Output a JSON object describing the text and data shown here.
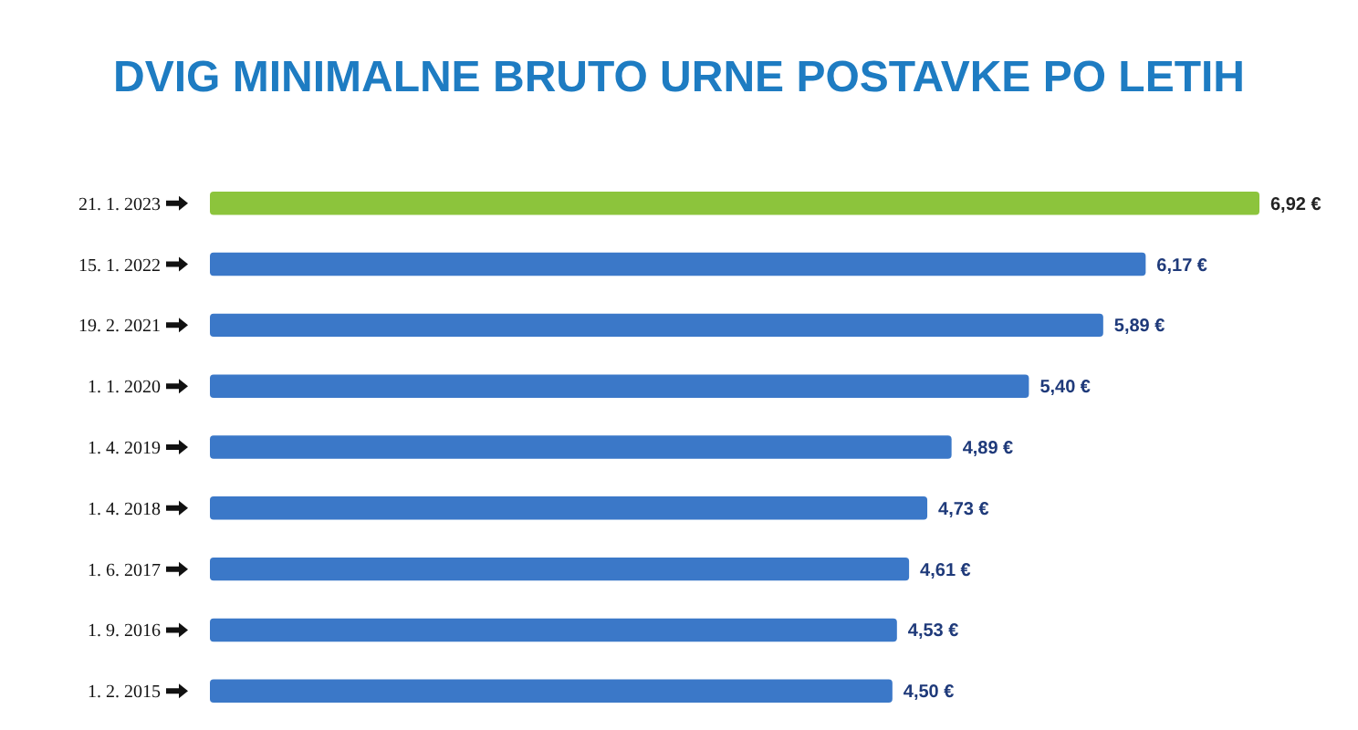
{
  "chart_data": {
    "type": "bar",
    "orientation": "horizontal",
    "title": "DVIG MINIMALNE BRUTO URNE POSTAVKE PO LETIH",
    "categories": [
      "21. 1. 2023",
      "15. 1. 2022",
      "19. 2. 2021",
      "1. 1. 2020",
      "1. 4. 2019",
      "1. 4. 2018",
      "1. 6. 2017",
      "1. 9. 2016",
      "1. 2. 2015"
    ],
    "values": [
      6.92,
      6.17,
      5.89,
      5.4,
      4.89,
      4.73,
      4.61,
      4.53,
      4.5
    ],
    "colors": [
      "#8cc43c",
      "#3b78c8",
      "#3b78c8",
      "#3b78c8",
      "#3b78c8",
      "#3b78c8",
      "#3b78c8",
      "#3b78c8",
      "#3b78c8"
    ],
    "value_labels": [
      "6,92 €",
      "6,17 €",
      "5,89 €",
      "5,40 €",
      "4,89 €",
      "4,73 €",
      "4,61 €",
      "4,53 €",
      "4,50 €"
    ]
  }
}
